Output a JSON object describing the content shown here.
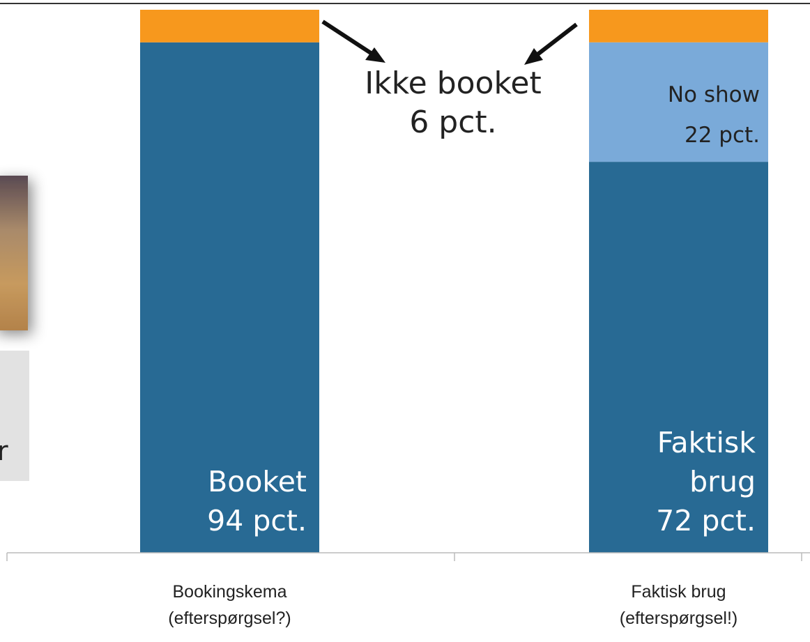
{
  "chart_data": {
    "type": "stacked_bar",
    "categories": [
      "Bookingskema (efterspørgsel?)",
      "Faktisk brug (efterspørgsel!)"
    ],
    "ylim": [
      0,
      100
    ],
    "bars": [
      {
        "segments": [
          {
            "name": "Booket",
            "value": 94,
            "value_label": "94 pct.",
            "color": "#286a94"
          },
          {
            "value": 6,
            "color": "#f7981d"
          }
        ]
      },
      {
        "segments": [
          {
            "name": "Faktisk brug",
            "value": 72,
            "value_label": "72 pct.",
            "color": "#286a94"
          },
          {
            "name": "No show",
            "value": 22,
            "value_label": "22 pct.",
            "color": "#7aaad9"
          },
          {
            "value": 6,
            "color": "#f7981d"
          }
        ]
      }
    ],
    "annotation": {
      "text": "Ikke booket",
      "value_label": "6 pct."
    }
  },
  "slide_fragment": {
    "text": "r"
  }
}
